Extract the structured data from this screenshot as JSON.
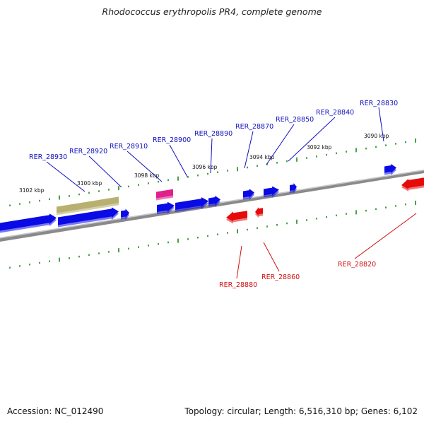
{
  "title": "Rhodococcus erythropolis PR4, complete genome",
  "footer": {
    "accession": "Accession: NC_012490",
    "summary": "Topology: circular; Length: 6,516,310 bp; Genes: 6,102"
  },
  "colors": {
    "forward_gene": "#0a0ae6",
    "reverse_gene": "#e60a0a",
    "forward_label": "#1010c0",
    "reverse_label": "#d01010",
    "tick": "#1a8a1a",
    "backbone": "#808080",
    "rna_gene": "#e0208a",
    "pseudo_region": "#b8b070"
  },
  "ticks": [
    {
      "label": "3090 kbp"
    },
    {
      "label": "3092 kbp"
    },
    {
      "label": "3094 kbp"
    },
    {
      "label": "3096 kbp"
    },
    {
      "label": "3098 kbp"
    },
    {
      "label": "3100 kbp"
    },
    {
      "label": "3102 kbp"
    }
  ],
  "forward_labels": [
    {
      "text": "RER_28830"
    },
    {
      "text": "RER_28840"
    },
    {
      "text": "RER_28850"
    },
    {
      "text": "RER_28870"
    },
    {
      "text": "RER_28890"
    },
    {
      "text": "RER_28900"
    },
    {
      "text": "RER_28910"
    },
    {
      "text": "RER_28920"
    },
    {
      "text": "RER_28930"
    }
  ],
  "reverse_labels": [
    {
      "text": "RER_28820"
    },
    {
      "text": "RER_28860"
    },
    {
      "text": "RER_28880"
    }
  ]
}
